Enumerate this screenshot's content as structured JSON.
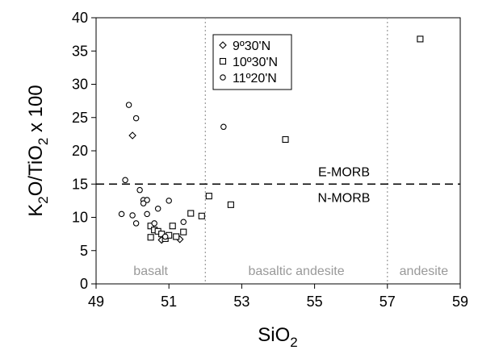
{
  "chart_data": {
    "type": "scatter",
    "title": "",
    "xlabel": "SiO",
    "xlabel_sub": "2",
    "ylabel_parts": [
      "K",
      "2",
      "O/TiO",
      "2",
      " x 100"
    ],
    "xlim": [
      49,
      59
    ],
    "ylim": [
      0,
      40
    ],
    "xticks": [
      49,
      51,
      53,
      55,
      57,
      59
    ],
    "yticks": [
      0,
      5,
      10,
      15,
      20,
      25,
      30,
      35,
      40
    ],
    "grid": false,
    "legend_position": "top-left (inside, near x = 52)",
    "reference_lines": [
      {
        "y": 15,
        "style": "dashed",
        "label_above": "E-MORB",
        "label_below": "N-MORB"
      }
    ],
    "region_dividers": [
      52,
      57
    ],
    "regions": [
      {
        "label": "basalt",
        "x_center": 50.5
      },
      {
        "label": "basaltic andesite",
        "x_center": 54.5
      },
      {
        "label": "andesite",
        "x_center": 58
      }
    ],
    "series": [
      {
        "name": "9º30'N",
        "marker": "diamond",
        "points": [
          [
            50.0,
            22.3
          ],
          [
            50.8,
            6.6
          ],
          [
            51.3,
            6.7
          ]
        ]
      },
      {
        "name": "10º30'N",
        "marker": "square",
        "points": [
          [
            50.5,
            8.7
          ],
          [
            50.6,
            8.1
          ],
          [
            50.5,
            7.0
          ],
          [
            50.7,
            7.9
          ],
          [
            50.8,
            7.5
          ],
          [
            50.9,
            6.8
          ],
          [
            51.0,
            7.3
          ],
          [
            51.1,
            8.7
          ],
          [
            51.2,
            7.1
          ],
          [
            51.4,
            7.8
          ],
          [
            51.6,
            10.6
          ],
          [
            51.9,
            10.2
          ],
          [
            52.1,
            13.2
          ],
          [
            52.7,
            11.9
          ],
          [
            54.2,
            21.7
          ],
          [
            57.9,
            36.8
          ]
        ]
      },
      {
        "name": "11º20'N",
        "marker": "circle",
        "points": [
          [
            49.9,
            26.9
          ],
          [
            50.1,
            24.9
          ],
          [
            49.8,
            15.6
          ],
          [
            50.2,
            14.1
          ],
          [
            50.3,
            12.6
          ],
          [
            50.4,
            12.6
          ],
          [
            50.3,
            12.1
          ],
          [
            51.0,
            12.5
          ],
          [
            50.7,
            11.3
          ],
          [
            49.7,
            10.5
          ],
          [
            50.0,
            10.3
          ],
          [
            50.4,
            10.5
          ],
          [
            50.1,
            9.1
          ],
          [
            51.4,
            9.3
          ],
          [
            50.6,
            9.1
          ],
          [
            50.9,
            7.1
          ],
          [
            52.5,
            23.6
          ]
        ]
      }
    ]
  }
}
